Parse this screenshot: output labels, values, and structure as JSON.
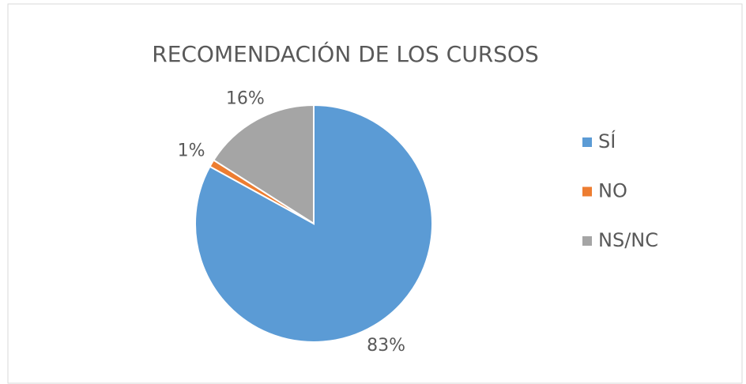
{
  "chart_data": {
    "type": "pie",
    "title": "RECOMENDACIÓN DE LOS CURSOS",
    "categories": [
      "SÍ",
      "NO",
      "NS/NC"
    ],
    "values": [
      83,
      1,
      16
    ],
    "value_labels": [
      "83%",
      "1%",
      "16%"
    ],
    "colors": [
      "#5b9bd5",
      "#ed7d31",
      "#a5a5a5"
    ],
    "legend": "right"
  }
}
